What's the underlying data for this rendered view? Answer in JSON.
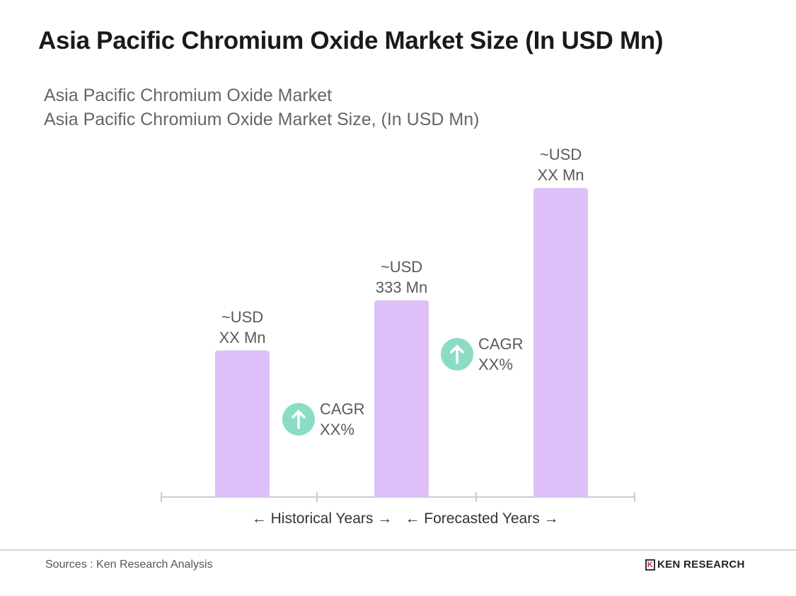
{
  "header": {
    "title": "Asia Pacific Chromium Oxide Market Size (In USD Mn)"
  },
  "chart_data": {
    "type": "bar",
    "title": "Asia Pacific Chromium Oxide Market",
    "subtitle": "Asia Pacific Chromium Oxide Market Size, (In USD Mn)",
    "categories": [
      "",
      "",
      ""
    ],
    "values": [
      248,
      333,
      523
    ],
    "data_labels": [
      [
        "~USD",
        "XX Mn"
      ],
      [
        "~USD",
        "333 Mn"
      ],
      [
        "~USD",
        "XX Mn"
      ]
    ],
    "cagr_annotations": [
      [
        "CAGR",
        "XX%"
      ],
      [
        "CAGR",
        "XX%"
      ]
    ],
    "period_labels": [
      "Historical Years",
      "Forecasted Years"
    ],
    "grid": false,
    "colors": {
      "bar": "#dcc0f7",
      "cagr_circle": "#8bdcc4",
      "axis": "#cccccc",
      "label": "#5a5a5a"
    }
  },
  "footer": {
    "source": "Sources : Ken Research Analysis",
    "logo": "KEN RESEARCH"
  }
}
